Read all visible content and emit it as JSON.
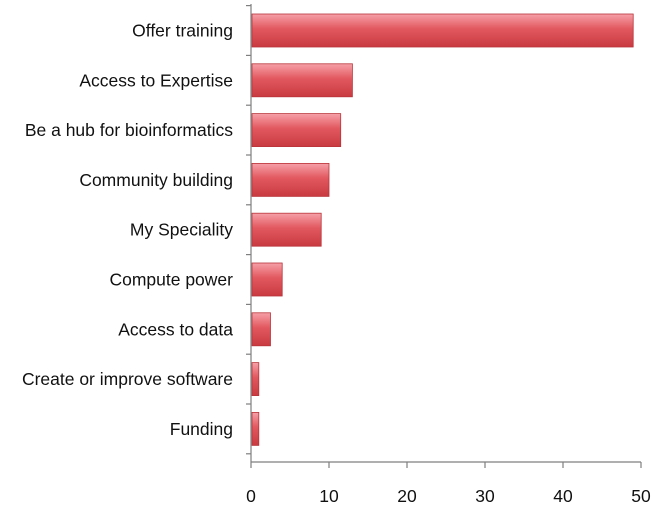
{
  "chart_data": {
    "type": "bar",
    "orientation": "horizontal",
    "title": "",
    "xlabel": "",
    "ylabel": "",
    "categories": [
      "Offer training",
      "Access to Expertise",
      "Be a hub for bioinformatics",
      "Community building",
      "My Speciality",
      "Compute power",
      "Access to data",
      "Create or improve software",
      "Funding"
    ],
    "values": [
      49,
      13,
      11.5,
      10,
      9,
      4,
      2.5,
      1,
      1
    ],
    "xlim": [
      0,
      50
    ],
    "xticks": [
      0,
      10,
      20,
      30,
      40,
      50
    ],
    "grid": false,
    "legend": "none",
    "colors": {
      "bar_light": "#f6a0a8",
      "bar_mid": "#e2585f",
      "bar_dark": "#c83a40",
      "bar_edge": "#b9343a",
      "axis": "#7f7f7f",
      "text": "#111111"
    }
  }
}
